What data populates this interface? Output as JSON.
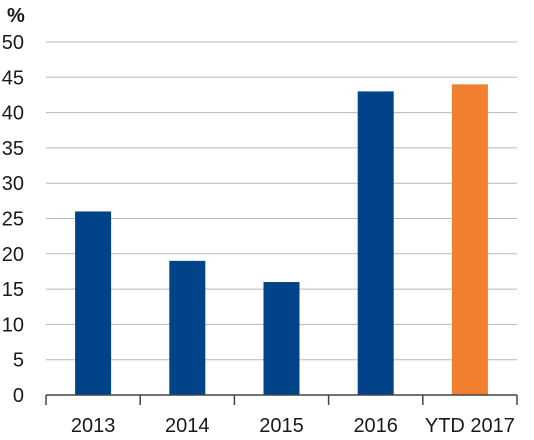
{
  "chart_data": {
    "type": "bar",
    "title": "",
    "xlabel": "",
    "ylabel": "%",
    "categories": [
      "2013",
      "2014",
      "2015",
      "2016",
      "YTD 2017"
    ],
    "values": [
      26,
      19,
      16,
      43,
      44
    ],
    "bar_colors": [
      "#004388",
      "#004388",
      "#004388",
      "#004388",
      "#F08030"
    ],
    "ylim": [
      0,
      50
    ],
    "yticks": [
      0,
      5,
      10,
      15,
      20,
      25,
      30,
      35,
      40,
      45,
      50
    ],
    "grid": true,
    "legend": "none"
  }
}
